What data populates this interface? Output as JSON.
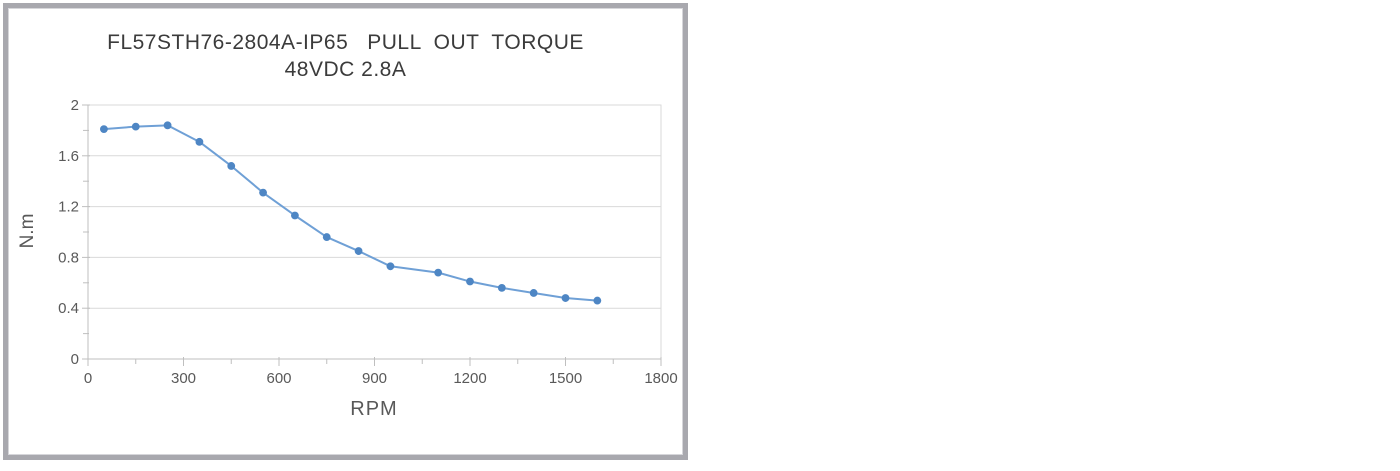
{
  "window": {
    "background": "#ffffff"
  },
  "chart": {
    "title_line1": "FL57STH76-2804A-IP65   PULL  OUT  TORQUE",
    "title_line2": "48VDC 2.8A",
    "x_axis_title": "RPM",
    "y_axis_title": "N.m"
  },
  "chart_data": {
    "type": "line",
    "title": "FL57STH76-2804A-IP65 PULL OUT TORQUE",
    "subtitle": "48VDC 2.8A",
    "xlabel": "RPM",
    "ylabel": "N.m",
    "x": [
      50,
      150,
      250,
      350,
      450,
      550,
      650,
      750,
      850,
      950,
      1100,
      1200,
      1300,
      1400,
      1500,
      1600
    ],
    "y": [
      1.81,
      1.83,
      1.84,
      1.71,
      1.52,
      1.31,
      1.13,
      0.96,
      0.85,
      0.73,
      0.68,
      0.61,
      0.56,
      0.52,
      0.48,
      0.46
    ],
    "xlim": [
      0,
      1800
    ],
    "ylim": [
      0,
      2
    ],
    "x_major_ticks": [
      0,
      300,
      600,
      900,
      1200,
      1500,
      1800
    ],
    "x_tick_labels": [
      "0",
      "300",
      "600",
      "900",
      "1200",
      "1500",
      "1800"
    ],
    "x_minor_tick_step": 150,
    "y_major_ticks": [
      0,
      0.4,
      0.8,
      1.2,
      1.6,
      2
    ],
    "y_tick_labels": [
      "0",
      "0.4",
      "0.8",
      "1.2",
      "1.6",
      "2"
    ],
    "y_minor_tick_step": 0.2,
    "grid": "horizontal-major-only",
    "legend": "none",
    "marker": "circle",
    "colors": {
      "line": "#6fa0d6",
      "marker": "#4e86c4",
      "gridline": "#d9d9d9",
      "plot_border": "#d9d9d9",
      "axis_line": "#bfbfbf",
      "tick_mark": "#bfbfbf",
      "tick_label": "#595959",
      "axis_title": "#595959",
      "chart_title": "#3b3b3b",
      "chart_frame": "#a8a8ae"
    }
  }
}
